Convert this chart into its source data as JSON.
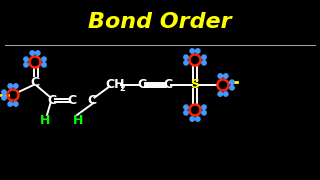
{
  "title": "Bond Order",
  "title_color": "#FFFF00",
  "title_fontsize": 16,
  "bg_color": "#000000",
  "line_color": "#FFFFFF",
  "h_color": "#00FF00",
  "o_color": "#FF2200",
  "s_color": "#FFFF00",
  "blue_dot_color": "#4499FF",
  "xlim": [
    0,
    32
  ],
  "ylim": [
    0,
    18
  ]
}
